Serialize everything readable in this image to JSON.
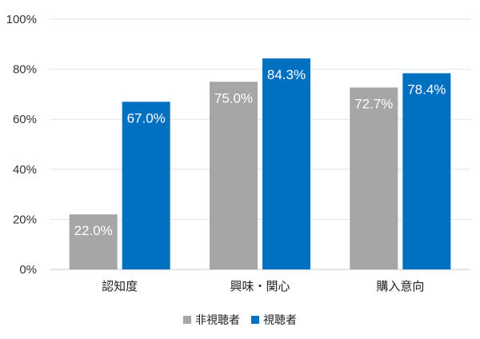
{
  "chart_data": {
    "type": "bar",
    "categories": [
      "認知度",
      "興味・関心",
      "購入意向"
    ],
    "series": [
      {
        "name": "非視聴者",
        "color": "#a6a6a6",
        "values": [
          22.0,
          75.0,
          72.7
        ],
        "labels": [
          "22.0%",
          "75.0%",
          "72.7%"
        ]
      },
      {
        "name": "視聴者",
        "color": "#0070c0",
        "values": [
          67.0,
          84.3,
          78.4
        ],
        "labels": [
          "67.0%",
          "84.3%",
          "78.4%"
        ]
      }
    ],
    "yticks": [
      {
        "value": 0,
        "label": "0%"
      },
      {
        "value": 20,
        "label": "20%"
      },
      {
        "value": 40,
        "label": "40%"
      },
      {
        "value": 60,
        "label": "60%"
      },
      {
        "value": 80,
        "label": "80%"
      },
      {
        "value": 100,
        "label": "100%"
      }
    ],
    "ylim": [
      0,
      100
    ],
    "grid": true,
    "legend": "bottom",
    "title": "",
    "xlabel": "",
    "ylabel": ""
  }
}
